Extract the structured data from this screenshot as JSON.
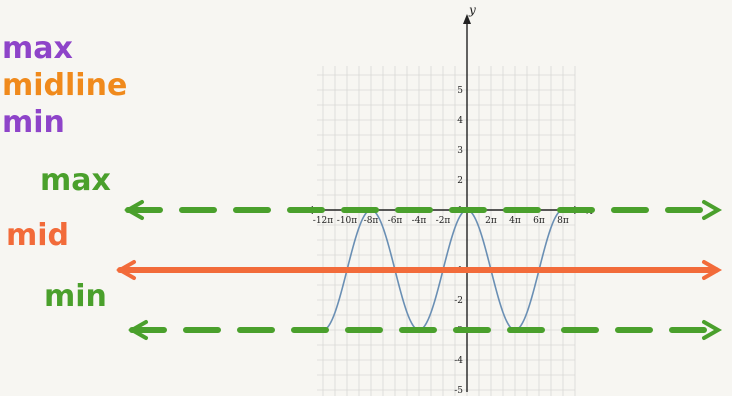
{
  "legend": {
    "items": [
      {
        "label": "max",
        "color": "#8e44c9"
      },
      {
        "label": "midline",
        "color": "#f08a1c"
      },
      {
        "label": "min",
        "color": "#8e44c9"
      }
    ]
  },
  "annotations": {
    "max_label": "max",
    "mid_label": "mid",
    "min_label": "min",
    "max_color": "#4aa02c",
    "mid_color": "#f26b3a",
    "min_color": "#4aa02c"
  },
  "chart_data": {
    "type": "line",
    "title": "",
    "xlabel": "x",
    "ylabel": "y",
    "xlim_pi": [
      -12.5,
      9
    ],
    "ylim": [
      -5.8,
      5.8
    ],
    "x_ticks": [
      {
        "value_pi": -12,
        "label": "-12π"
      },
      {
        "value_pi": -10,
        "label": "-10π"
      },
      {
        "value_pi": -8,
        "label": "-8π"
      },
      {
        "value_pi": -6,
        "label": "-6π"
      },
      {
        "value_pi": -4,
        "label": "-4π"
      },
      {
        "value_pi": -2,
        "label": "-2π"
      },
      {
        "value_pi": 2,
        "label": "2π"
      },
      {
        "value_pi": 4,
        "label": "4π"
      },
      {
        "value_pi": 6,
        "label": "6π"
      },
      {
        "value_pi": 8,
        "label": "8π"
      }
    ],
    "y_ticks": [
      {
        "value": 5,
        "label": "5"
      },
      {
        "value": 4,
        "label": "4"
      },
      {
        "value": 3,
        "label": "3"
      },
      {
        "value": 2,
        "label": "2"
      },
      {
        "value": 1,
        "label": "1"
      },
      {
        "value": -1,
        "label": "-1"
      },
      {
        "value": -2,
        "label": "-2"
      },
      {
        "value": -3,
        "label": "-3"
      },
      {
        "value": -4,
        "label": "-4"
      },
      {
        "value": -5,
        "label": "-5"
      }
    ],
    "grid": true,
    "series": [
      {
        "function": "y = 2cos(x/4) - 1",
        "color": "#6a8fb4",
        "x_pi": [
          -12,
          -10,
          -8,
          -6,
          -4,
          -2,
          0,
          2,
          4,
          6,
          8
        ],
        "values": [
          -3,
          -1,
          1,
          -1,
          -3,
          -1,
          1,
          -1,
          -3,
          -1,
          1
        ]
      }
    ],
    "reference_lines": [
      {
        "name": "max",
        "y": 1,
        "style": "dashed",
        "color": "#4aa02c"
      },
      {
        "name": "mid",
        "y": -1,
        "style": "solid",
        "color": "#f26b3a"
      },
      {
        "name": "min",
        "y": -3,
        "style": "dashed",
        "color": "#4aa02c"
      }
    ]
  }
}
